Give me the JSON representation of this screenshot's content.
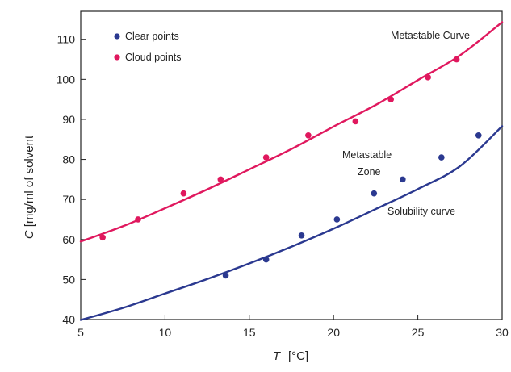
{
  "chart_data": {
    "type": "scatter",
    "xlabel_var": "T",
    "xlabel_unit": "[°C]",
    "ylabel_var": "C",
    "ylabel_unit": "[mg/ml of solvent",
    "xlim": [
      5,
      30
    ],
    "ylim": [
      40,
      117
    ],
    "xticks": [
      5,
      10,
      15,
      20,
      25,
      30
    ],
    "yticks": [
      40,
      50,
      60,
      70,
      80,
      90,
      100,
      110
    ],
    "grid": false,
    "legend_position": "top-left",
    "series": [
      {
        "name": "Clear points",
        "color": "#2b3990",
        "points": [
          [
            13.6,
            51
          ],
          [
            16.0,
            55
          ],
          [
            18.1,
            61
          ],
          [
            20.2,
            65
          ],
          [
            22.4,
            71.5
          ],
          [
            24.1,
            75
          ],
          [
            26.4,
            80.5
          ],
          [
            28.6,
            86
          ]
        ]
      },
      {
        "name": "Cloud points",
        "color": "#e0185e",
        "points": [
          [
            6.3,
            60.5
          ],
          [
            8.4,
            65
          ],
          [
            11.1,
            71.5
          ],
          [
            13.3,
            75
          ],
          [
            16.0,
            80.5
          ],
          [
            18.5,
            86
          ],
          [
            21.3,
            89.5
          ],
          [
            23.4,
            95
          ],
          [
            25.6,
            100.5
          ],
          [
            27.3,
            105
          ]
        ]
      }
    ],
    "curves": [
      {
        "name": "Solubility curve",
        "color": "#2b3990",
        "points": [
          [
            5,
            39.9
          ],
          [
            7.5,
            42.9
          ],
          [
            10,
            46.5
          ],
          [
            12.5,
            50.1
          ],
          [
            15,
            54
          ],
          [
            17.5,
            58.2
          ],
          [
            20,
            62.7
          ],
          [
            22.5,
            67.6
          ],
          [
            25,
            72.6
          ],
          [
            27.5,
            78.3
          ],
          [
            30,
            88.3
          ]
        ]
      },
      {
        "name": "Metastable Curve",
        "color": "#e0185e",
        "points": [
          [
            5,
            59.5
          ],
          [
            7.5,
            63.3
          ],
          [
            10,
            67.8
          ],
          [
            12.5,
            72.5
          ],
          [
            15,
            77.5
          ],
          [
            17.5,
            82.6
          ],
          [
            20,
            88.2
          ],
          [
            22.5,
            93.6
          ],
          [
            25,
            99.8
          ],
          [
            27.5,
            106
          ],
          [
            30,
            114.3
          ]
        ]
      }
    ],
    "annotations": {
      "metastable_curve": "Metastable Curve",
      "zone_line1": "Metastable",
      "zone_line2": "Zone",
      "solubility_curve": "Solubility curve"
    }
  }
}
